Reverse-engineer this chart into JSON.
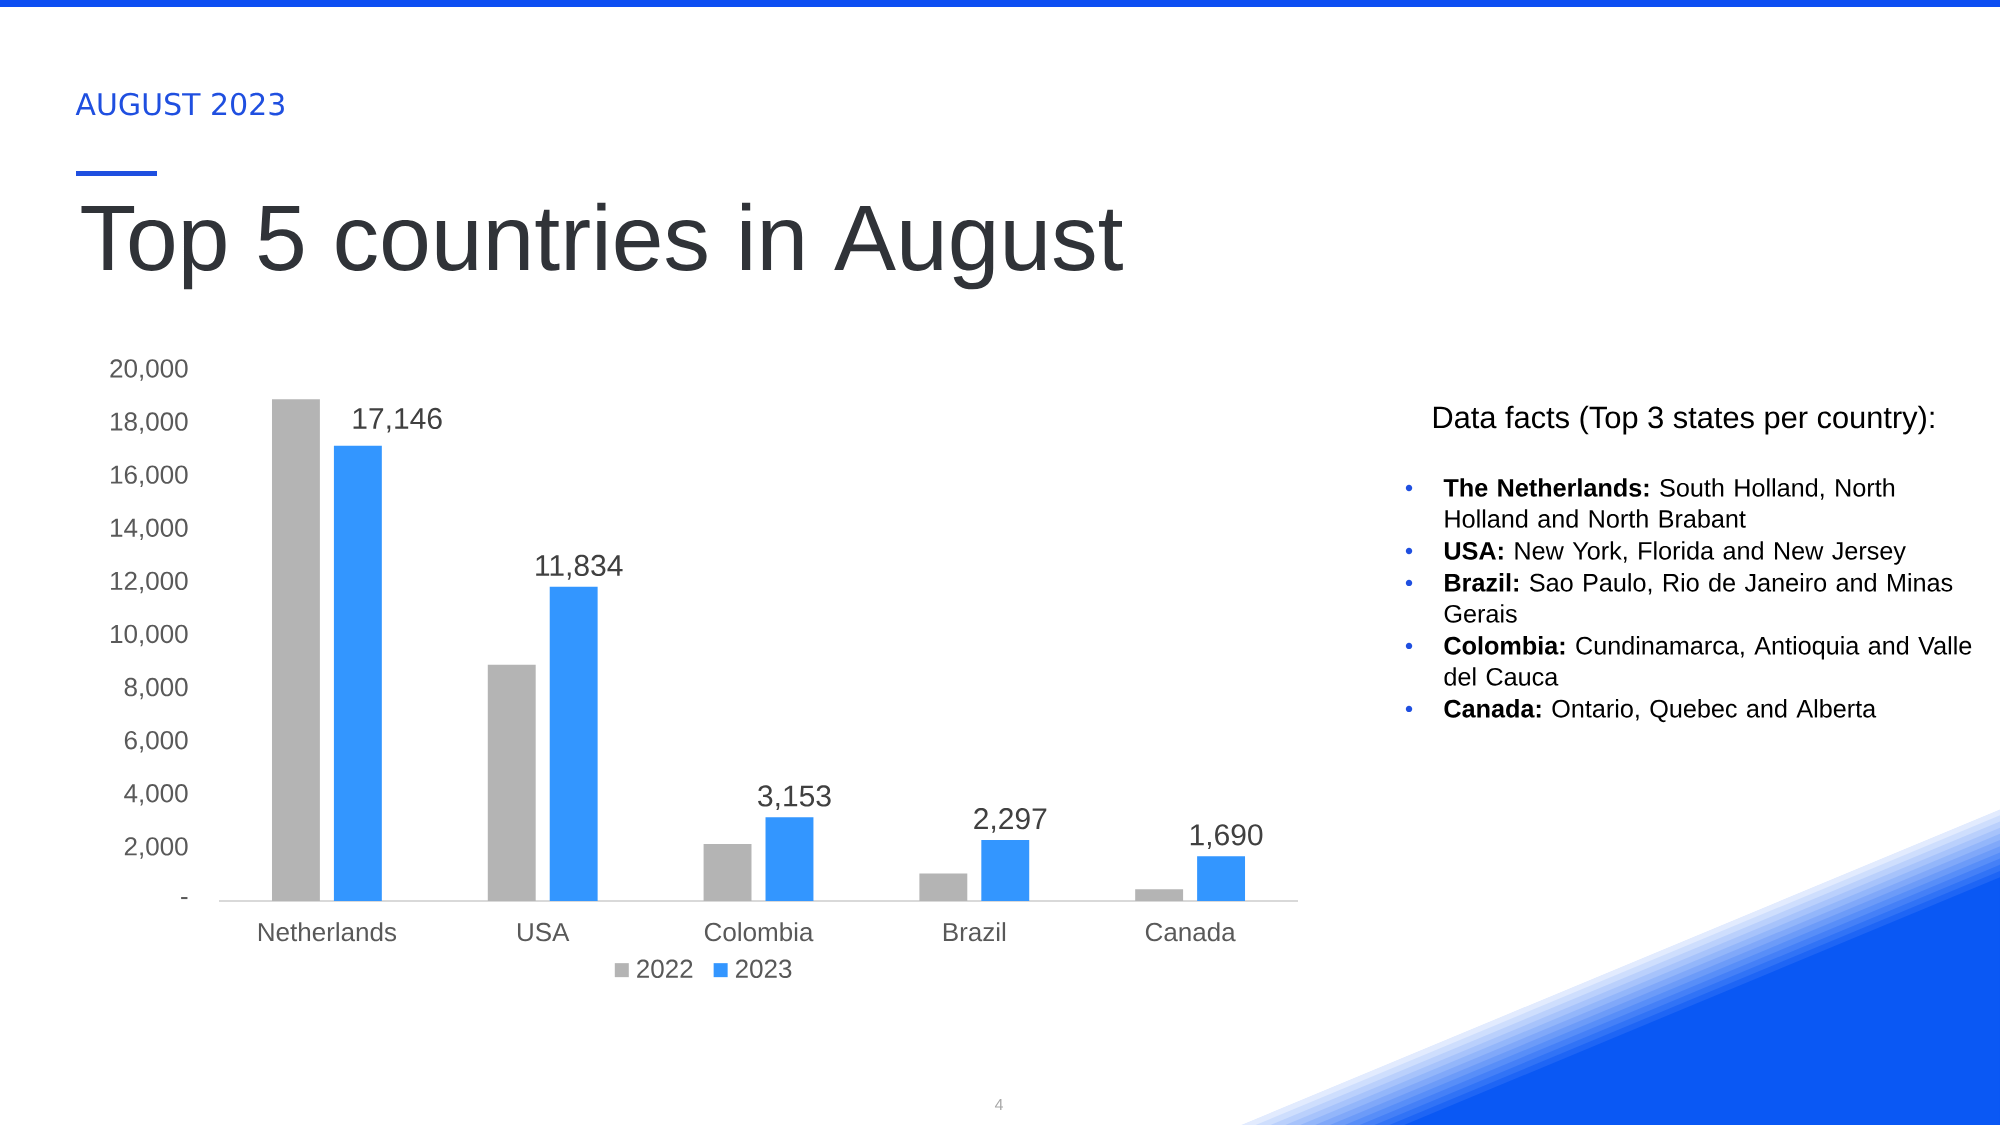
{
  "chart_data": {
    "type": "bar",
    "subtitle": "AUGUST 2023",
    "title": "Top 5 countries in August",
    "categories": [
      "Netherlands",
      "USA",
      "Colombia",
      "Brazil",
      "Canada"
    ],
    "series": [
      {
        "name": "2022",
        "color": "#b4b4b4",
        "values": [
          18900,
          8900,
          2150,
          1040,
          440
        ]
      },
      {
        "name": "2023",
        "color": "#3396ff",
        "values": [
          17146,
          11834,
          3153,
          2297,
          1690
        ],
        "value_labels": [
          "17,146",
          "11,834",
          "3,153",
          "2,297",
          "1,690"
        ]
      }
    ],
    "ylim": [
      0,
      20000
    ],
    "yticks": [
      {
        "value": 0,
        "label": "-"
      },
      {
        "value": 2000,
        "label": "2,000"
      },
      {
        "value": 4000,
        "label": "4,000"
      },
      {
        "value": 6000,
        "label": "6,000"
      },
      {
        "value": 8000,
        "label": "8,000"
      },
      {
        "value": 10000,
        "label": "10,000"
      },
      {
        "value": 12000,
        "label": "12,000"
      },
      {
        "value": 14000,
        "label": "14,000"
      },
      {
        "value": 16000,
        "label": "16,000"
      },
      {
        "value": 18000,
        "label": "18,000"
      },
      {
        "value": 20000,
        "label": "20,000"
      }
    ],
    "legend": "bottom",
    "annotations": [
      "Data facts (Top 3 states per country):",
      "**The Netherlands:** South Holland, North Holland and North Brabant",
      "**USA:** New York, Florida and New Jersey",
      "**Brazil:** Sao Paulo, Rio de Janeiro and Minas Gerais",
      "**Colombia:** Cundinamarca, Antioquia and Valle del Cauca",
      "**Canada:** Ontario, Quebec and Alberta",
      "4"
    ]
  }
}
